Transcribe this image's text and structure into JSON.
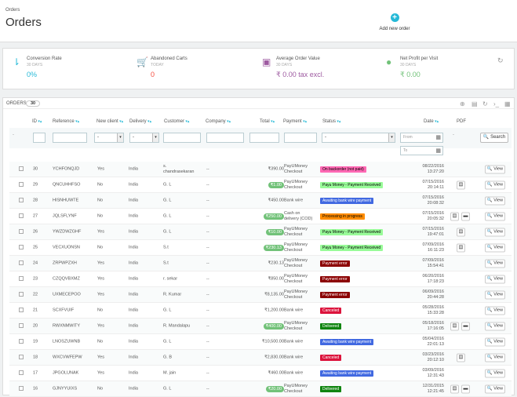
{
  "header": {
    "breadcrumb": "Orders",
    "title": "Orders",
    "add_label": "Add new order",
    "add_icon": "plus-circle-icon"
  },
  "kpis": [
    {
      "title": "Conversion Rate",
      "sub": "30 DAYS",
      "value": "0%",
      "color": "#25b9d7",
      "icon": "sort-icon"
    },
    {
      "title": "Abandoned Carts",
      "sub": "TODAY",
      "value": "0",
      "color": "#f54c3e",
      "icon": "cart-icon"
    },
    {
      "title": "Average Order Value",
      "sub": "30 DAYS",
      "value": "₹ 0.00 tax excl.",
      "color": "#9e5ba1",
      "icon": "money-icon"
    },
    {
      "title": "Net Profit per Visit",
      "sub": "30 DAYS",
      "value": "₹ 0.00",
      "color": "#72c279",
      "icon": "user-icon"
    }
  ],
  "panel": {
    "title": "ORDERS",
    "count": "30",
    "filter_from": "From",
    "filter_to": "To",
    "search_label": "Search",
    "filter_dash": "-",
    "view_label": "View"
  },
  "columns": [
    "ID",
    "Reference",
    "New client",
    "Delivery",
    "Customer",
    "Company",
    "Total",
    "Payment",
    "Status",
    "Date",
    "PDF"
  ],
  "orders": [
    {
      "id": "30",
      "ref": "YCHFONQJD",
      "new": "Yes",
      "del": "India",
      "cust": "s.\nchandrasekaran",
      "comp": "--",
      "total": "₹390.00",
      "pill": false,
      "pay": "PayUMoney\nCheckout",
      "status": "On backorder (not paid)",
      "sbg": "#ff69b4",
      "sfg": "#000",
      "date": "08/22/2016\n13:27:20",
      "pdf": 0
    },
    {
      "id": "29",
      "ref": "QNCUHHFSO",
      "new": "No",
      "del": "India",
      "cust": "G. L",
      "comp": "--",
      "total": "₹1.00",
      "pill": true,
      "pay": "PayUMoney\nCheckout",
      "status": "Payu Money - Payment Received",
      "sbg": "#98fb98",
      "sfg": "#000",
      "date": "07/15/2016\n20:14:11",
      "pdf": 1
    },
    {
      "id": "28",
      "ref": "HISNHUWTE",
      "new": "No",
      "del": "India",
      "cust": "G. L",
      "comp": "--",
      "total": "₹450.00",
      "pill": false,
      "pay": "Bank wire",
      "status": "Awaiting bank wire payment",
      "sbg": "#4169e1",
      "sfg": "#fff",
      "date": "07/15/2016\n20:08:32",
      "pdf": 0
    },
    {
      "id": "27",
      "ref": "JQLSFLYNF",
      "new": "No",
      "del": "India",
      "cust": "G. L",
      "comp": "--",
      "total": "₹250.00",
      "pill": true,
      "pay": "Cash on\ndelivery (COD)",
      "status": "Processing in progress",
      "sbg": "#ff8c00",
      "sfg": "#000",
      "date": "07/15/2016\n20:05:32",
      "pdf": 2
    },
    {
      "id": "26",
      "ref": "YWZDWZGHF",
      "new": "Yes",
      "del": "India",
      "cust": "G. L",
      "comp": "--",
      "total": "₹10.00",
      "pill": true,
      "pay": "PayUMoney\nCheckout",
      "status": "Payu Money - Payment Received",
      "sbg": "#98fb98",
      "sfg": "#000",
      "date": "07/15/2016\n19:47:01",
      "pdf": 1
    },
    {
      "id": "25",
      "ref": "VECXUONSN",
      "new": "No",
      "del": "India",
      "cust": "S.t",
      "comp": "--",
      "total": "₹230.13",
      "pill": true,
      "pay": "PayUMoney\nCheckout",
      "status": "Payu Money - Payment Received",
      "sbg": "#98fb98",
      "sfg": "#000",
      "date": "07/09/2016\n16:11:23",
      "pdf": 1
    },
    {
      "id": "24",
      "ref": "ZRPWPZXH",
      "new": "Yes",
      "del": "India",
      "cust": "S.t",
      "comp": "--",
      "total": "₹230.13",
      "pill": false,
      "pay": "PayUMoney\nCheckout",
      "status": "Payment error",
      "sbg": "#8b0000",
      "sfg": "#fff",
      "date": "07/09/2016\n15:54:41",
      "pdf": 0
    },
    {
      "id": "23",
      "ref": "CZQQVBXMZ",
      "new": "Yes",
      "del": "India",
      "cust": "r. sekar",
      "comp": "--",
      "total": "₹850.00",
      "pill": false,
      "pay": "PayUMoney\nCheckout",
      "status": "Payment error",
      "sbg": "#8b0000",
      "sfg": "#fff",
      "date": "06/20/2016\n17:18:23",
      "pdf": 0
    },
    {
      "id": "22",
      "ref": "UXMECEPOO",
      "new": "Yes",
      "del": "India",
      "cust": "R. Kumar",
      "comp": "--",
      "total": "₹8,135.00",
      "pill": false,
      "pay": "PayUMoney\nCheckout",
      "status": "Payment error",
      "sbg": "#8b0000",
      "sfg": "#fff",
      "date": "06/09/2016\n20:44:28",
      "pdf": 0
    },
    {
      "id": "21",
      "ref": "SCXFVUIF",
      "new": "No",
      "del": "India",
      "cust": "G. L",
      "comp": "--",
      "total": "₹1,200.00",
      "pill": false,
      "pay": "Bank wire",
      "status": "Canceled",
      "sbg": "#dc143c",
      "sfg": "#fff",
      "date": "05/28/2016\n15:33:28",
      "pdf": 0
    },
    {
      "id": "20",
      "ref": "RWXNMWITY",
      "new": "Yes",
      "del": "India",
      "cust": "R. Mandalapu",
      "comp": "--",
      "total": "₹400.00",
      "pill": true,
      "pay": "PayUMoney\nCheckout",
      "status": "Delivered",
      "sbg": "#108510",
      "sfg": "#fff",
      "date": "05/18/2016\n17:16:05",
      "pdf": 2
    },
    {
      "id": "19",
      "ref": "LNOSZUWNB",
      "new": "No",
      "del": "India",
      "cust": "G. L",
      "comp": "--",
      "total": "₹10,500.00",
      "pill": false,
      "pay": "Bank wire",
      "status": "Awaiting bank wire payment",
      "sbg": "#4169e1",
      "sfg": "#fff",
      "date": "05/04/2016\n22:01:13",
      "pdf": 0
    },
    {
      "id": "18",
      "ref": "WXCVWFEPW",
      "new": "Yes",
      "del": "India",
      "cust": "G. B",
      "comp": "--",
      "total": "₹2,830.00",
      "pill": false,
      "pay": "Bank wire",
      "status": "Canceled",
      "sbg": "#dc143c",
      "sfg": "#fff",
      "date": "03/23/2016\n20:12:10",
      "pdf": 1
    },
    {
      "id": "17",
      "ref": "JPGOLUNAK",
      "new": "Yes",
      "del": "India",
      "cust": "M. jain",
      "comp": "--",
      "total": "₹460.00",
      "pill": false,
      "pay": "Bank wire",
      "status": "Awaiting bank wire payment",
      "sbg": "#4169e1",
      "sfg": "#fff",
      "date": "03/09/2016\n12:31:43",
      "pdf": 0
    },
    {
      "id": "16",
      "ref": "GJNYYUIXS",
      "new": "No",
      "del": "India",
      "cust": "G. L",
      "comp": "--",
      "total": "₹20.00",
      "pill": true,
      "pay": "PayUMoney\nCheckout",
      "status": "Delivered",
      "sbg": "#108510",
      "sfg": "#fff",
      "date": "12/31/2015\n12:21:45",
      "pdf": 2
    }
  ]
}
